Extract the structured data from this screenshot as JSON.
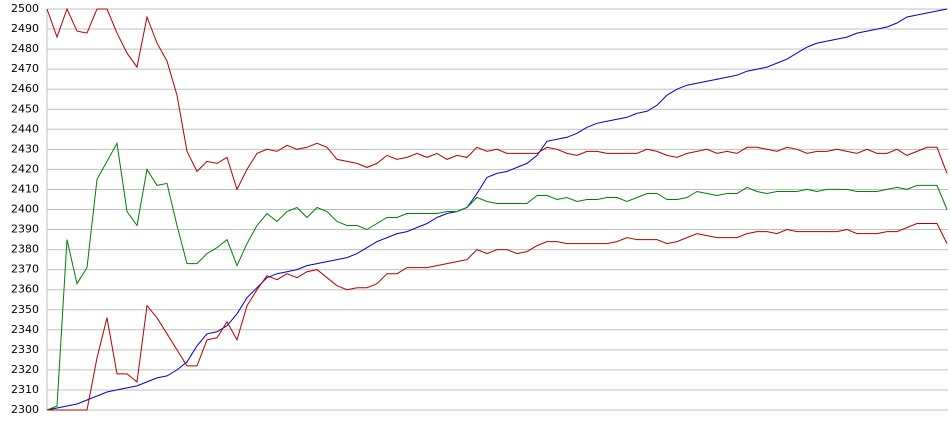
{
  "chart_data": {
    "type": "line",
    "ylim": [
      2300,
      2500
    ],
    "yticks": [
      2300,
      2310,
      2320,
      2330,
      2340,
      2350,
      2360,
      2370,
      2380,
      2390,
      2400,
      2410,
      2420,
      2430,
      2440,
      2450,
      2460,
      2470,
      2480,
      2490,
      2500
    ],
    "grid": true,
    "series": [
      {
        "color": "#0000c8",
        "values": [
          2300,
          2301,
          2302,
          2303,
          2305,
          2307,
          2309,
          2310,
          2311,
          2312,
          2314,
          2316,
          2317,
          2320,
          2324,
          2332,
          2338,
          2339,
          2342,
          2348,
          2356,
          2361,
          2366,
          2368,
          2369,
          2370,
          2372,
          2373,
          2374,
          2375,
          2376,
          2378,
          2381,
          2384,
          2386,
          2388,
          2389,
          2391,
          2393,
          2396,
          2398,
          2399,
          2401,
          2408,
          2416,
          2418,
          2419,
          2421,
          2423,
          2427,
          2434,
          2435,
          2436,
          2438,
          2441,
          2443,
          2444,
          2445,
          2446,
          2448,
          2449,
          2452,
          2457,
          2460,
          2462,
          2463,
          2464,
          2465,
          2466,
          2467,
          2469,
          2470,
          2471,
          2473,
          2475,
          2478,
          2481,
          2483,
          2484,
          2485,
          2486,
          2488,
          2489,
          2490,
          2491,
          2493,
          2496,
          2497,
          2498,
          2499,
          2500
        ]
      },
      {
        "color": "#b40000",
        "values": [
          2500,
          2486,
          2500,
          2489,
          2488,
          2500,
          2500,
          2488,
          2478,
          2471,
          2496,
          2483,
          2474,
          2457,
          2429,
          2419,
          2424,
          2423,
          2426,
          2410,
          2420,
          2428,
          2430,
          2429,
          2432,
          2430,
          2431,
          2433,
          2431,
          2425,
          2424,
          2423,
          2421,
          2423,
          2427,
          2425,
          2426,
          2428,
          2426,
          2428,
          2425,
          2427,
          2426,
          2431,
          2429,
          2430,
          2428,
          2428,
          2428,
          2428,
          2431,
          2430,
          2428,
          2427,
          2429,
          2429,
          2428,
          2428,
          2428,
          2428,
          2430,
          2429,
          2427,
          2426,
          2428,
          2429,
          2430,
          2428,
          2429,
          2428,
          2431,
          2431,
          2430,
          2429,
          2431,
          2430,
          2428,
          2429,
          2429,
          2430,
          2429,
          2428,
          2430,
          2428,
          2428,
          2430,
          2427,
          2429,
          2431,
          2431,
          2418
        ]
      },
      {
        "color": "#008000",
        "values": [
          2300,
          2302,
          2385,
          2363,
          2371,
          2415,
          2424,
          2433,
          2399,
          2392,
          2420,
          2412,
          2413,
          2392,
          2373,
          2373,
          2378,
          2381,
          2385,
          2372,
          2383,
          2392,
          2398,
          2394,
          2399,
          2401,
          2396,
          2401,
          2399,
          2394,
          2392,
          2392,
          2390,
          2393,
          2396,
          2396,
          2398,
          2398,
          2398,
          2398,
          2399,
          2399,
          2401,
          2406,
          2404,
          2403,
          2403,
          2403,
          2403,
          2407,
          2407,
          2405,
          2406,
          2404,
          2405,
          2405,
          2406,
          2406,
          2404,
          2406,
          2408,
          2408,
          2405,
          2405,
          2406,
          2409,
          2408,
          2407,
          2408,
          2408,
          2411,
          2409,
          2408,
          2409,
          2409,
          2409,
          2410,
          2409,
          2410,
          2410,
          2410,
          2409,
          2409,
          2409,
          2410,
          2411,
          2410,
          2412,
          2412,
          2412,
          2400
        ]
      },
      {
        "color": "#b40000",
        "values": [
          2300,
          2300,
          2300,
          2300,
          2300,
          2326,
          2346,
          2318,
          2318,
          2314,
          2352,
          2346,
          2338,
          2330,
          2322,
          2322,
          2335,
          2336,
          2344,
          2335,
          2352,
          2360,
          2367,
          2365,
          2368,
          2366,
          2369,
          2370,
          2366,
          2362,
          2360,
          2361,
          2361,
          2363,
          2368,
          2368,
          2371,
          2371,
          2371,
          2372,
          2373,
          2374,
          2375,
          2380,
          2378,
          2380,
          2380,
          2378,
          2379,
          2382,
          2384,
          2384,
          2383,
          2383,
          2383,
          2383,
          2383,
          2384,
          2386,
          2385,
          2385,
          2385,
          2383,
          2384,
          2386,
          2388,
          2387,
          2386,
          2386,
          2386,
          2388,
          2389,
          2389,
          2388,
          2390,
          2389,
          2389,
          2389,
          2389,
          2389,
          2390,
          2388,
          2388,
          2388,
          2389,
          2389,
          2391,
          2393,
          2393,
          2393,
          2383
        ]
      }
    ]
  }
}
